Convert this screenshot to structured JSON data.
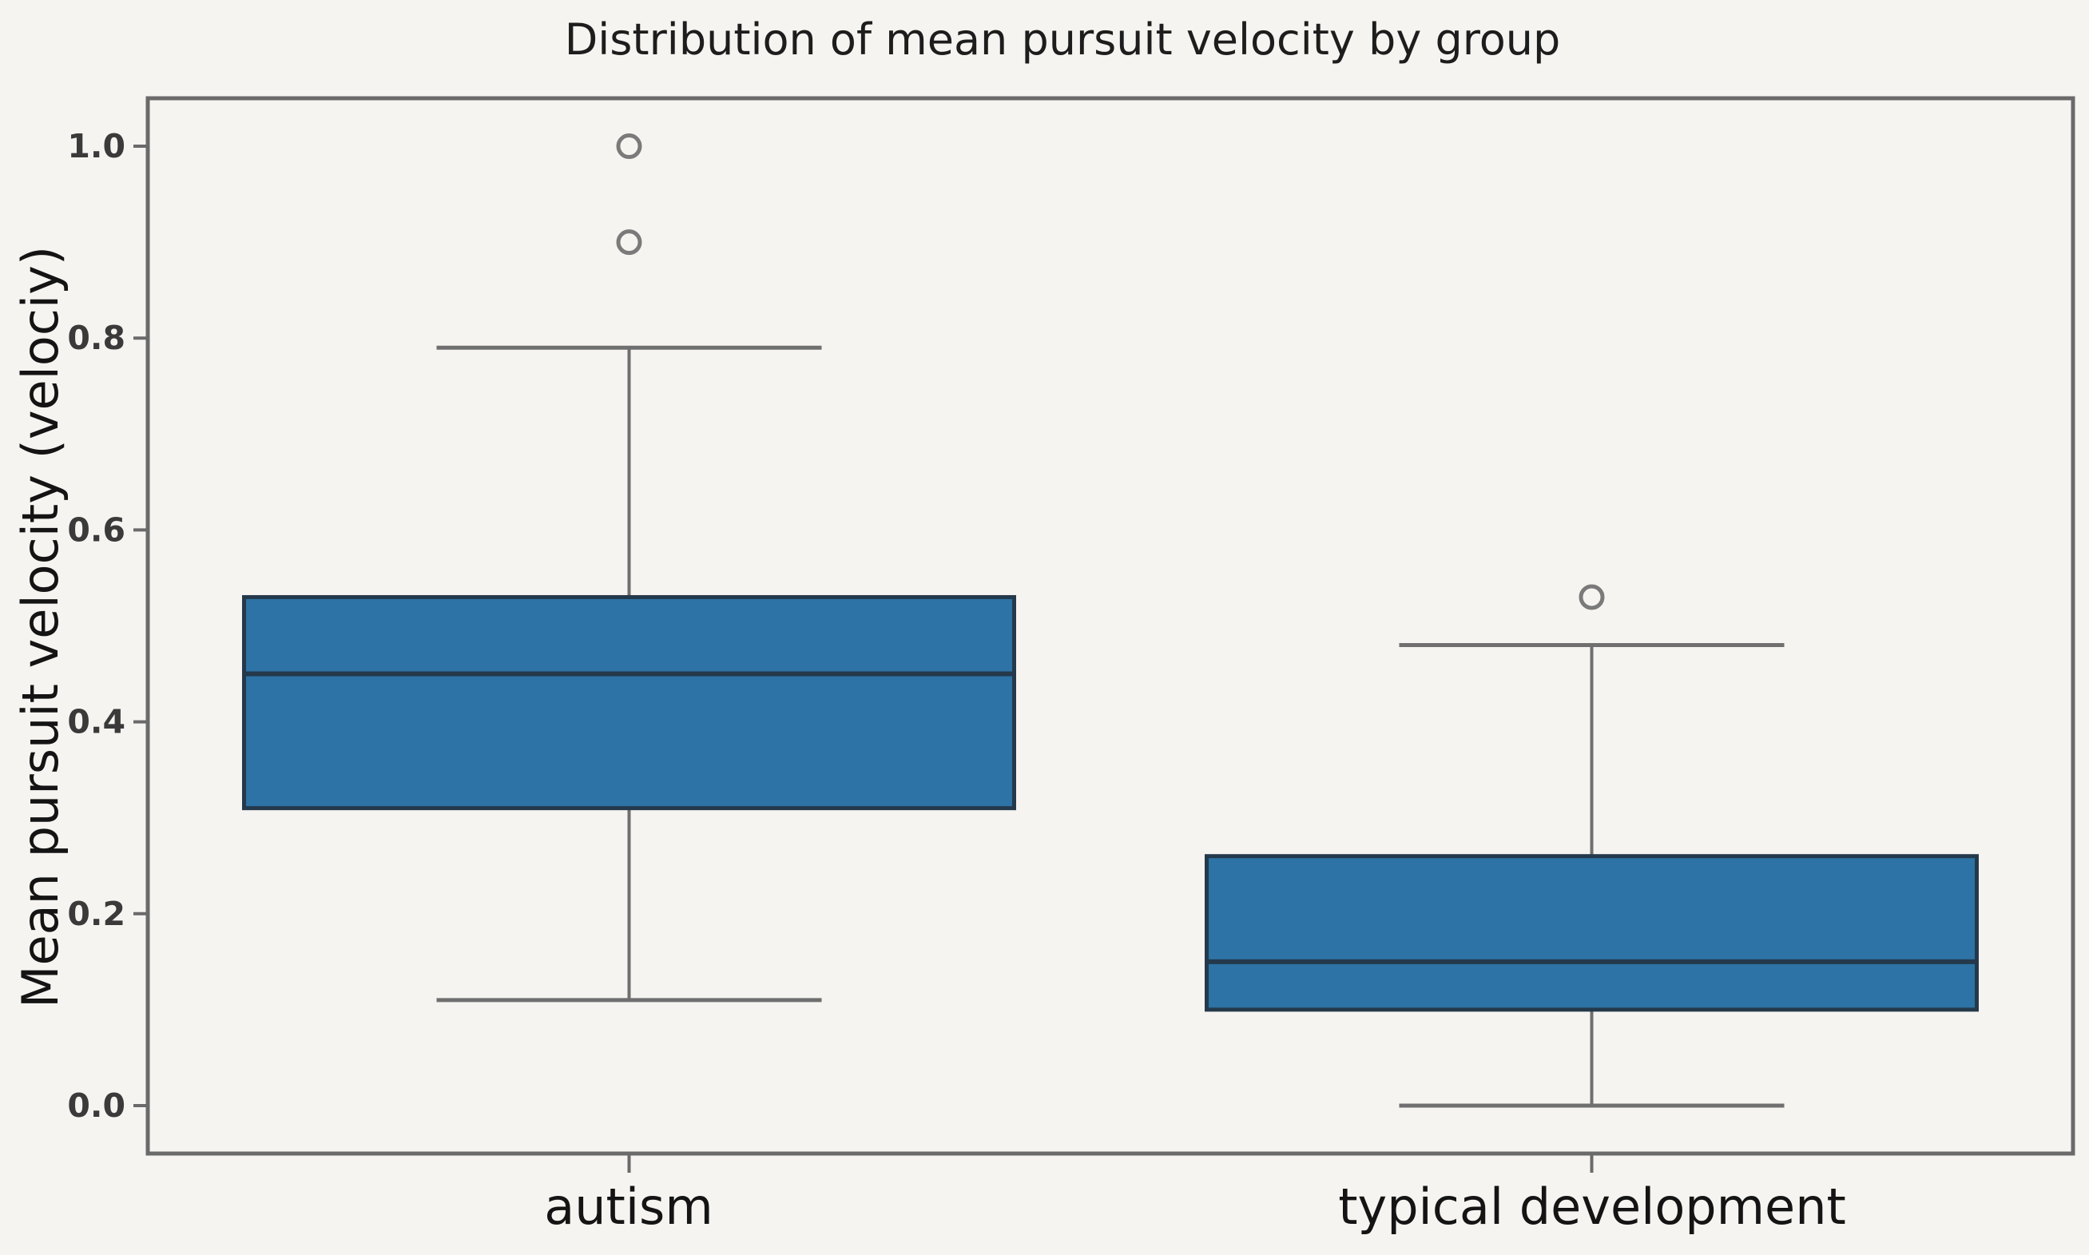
{
  "chart_data": {
    "type": "box",
    "title": "Distribution of mean pursuit velocity by group",
    "ylabel": "Mean pursuit velocity (velociy)",
    "xlabel": "",
    "categories": [
      "autism",
      "typical development"
    ],
    "series": [
      {
        "name": "autism",
        "whisker_low": 0.11,
        "q1": 0.31,
        "median": 0.45,
        "q3": 0.53,
        "whisker_high": 0.79,
        "outliers": [
          0.9,
          1.0
        ]
      },
      {
        "name": "typical development",
        "whisker_low": 0.0,
        "q1": 0.1,
        "median": 0.15,
        "q3": 0.26,
        "whisker_high": 0.48,
        "outliers": [
          0.53
        ]
      }
    ],
    "yticks": [
      0.0,
      0.2,
      0.4,
      0.6,
      0.8,
      1.0
    ],
    "ytick_labels": [
      "0.0",
      "0.2",
      "0.4",
      "0.6",
      "0.8",
      "1.0"
    ],
    "ylim": [
      -0.05,
      1.05
    ],
    "xlim": [
      -0.5,
      1.5
    ],
    "box_width": 0.8,
    "cap_width": 0.4,
    "grid": false,
    "legend": "none",
    "colors": {
      "background": "#f6f4f0",
      "box_fill": "#2d73a5",
      "box_edge": "#24394b",
      "median": "#24394b",
      "whisker": "#6f6f6f",
      "spine": "#6a6a6a",
      "outlier_ring": "#7a7a7a"
    }
  }
}
